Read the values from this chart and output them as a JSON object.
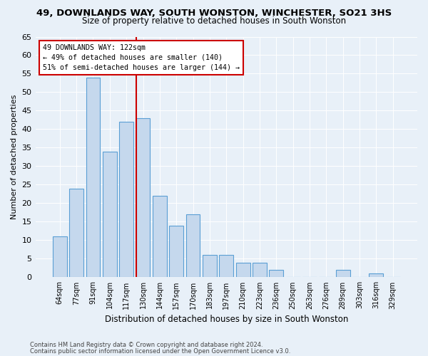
{
  "title": "49, DOWNLANDS WAY, SOUTH WONSTON, WINCHESTER, SO21 3HS",
  "subtitle": "Size of property relative to detached houses in South Wonston",
  "xlabel": "Distribution of detached houses by size in South Wonston",
  "ylabel": "Number of detached properties",
  "categories": [
    "64sqm",
    "77sqm",
    "91sqm",
    "104sqm",
    "117sqm",
    "130sqm",
    "144sqm",
    "157sqm",
    "170sqm",
    "183sqm",
    "197sqm",
    "210sqm",
    "223sqm",
    "236sqm",
    "250sqm",
    "263sqm",
    "276sqm",
    "289sqm",
    "303sqm",
    "316sqm",
    "329sqm"
  ],
  "values": [
    11,
    24,
    54,
    34,
    42,
    43,
    22,
    14,
    17,
    6,
    6,
    4,
    4,
    2,
    0,
    0,
    0,
    2,
    0,
    1,
    0
  ],
  "bar_color": "#c5d8ed",
  "bar_edge_color": "#5a9fd4",
  "background_color": "#e8f0f8",
  "vline_x": 4.575,
  "vline_color": "#cc0000",
  "annotation_text": "49 DOWNLANDS WAY: 122sqm\n← 49% of detached houses are smaller (140)\n51% of semi-detached houses are larger (144) →",
  "annotation_box_color": "white",
  "annotation_box_edge_color": "#cc0000",
  "ylim": [
    0,
    65
  ],
  "yticks": [
    0,
    5,
    10,
    15,
    20,
    25,
    30,
    35,
    40,
    45,
    50,
    55,
    60,
    65
  ],
  "footnote1": "Contains HM Land Registry data © Crown copyright and database right 2024.",
  "footnote2": "Contains public sector information licensed under the Open Government Licence v3.0.",
  "title_fontsize": 9.5,
  "subtitle_fontsize": 8.5
}
